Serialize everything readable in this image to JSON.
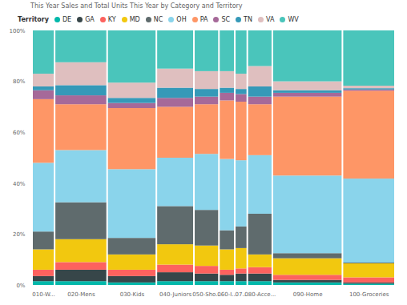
{
  "chart_data": {
    "type": "marimekko",
    "title": "This Year Sales and Total Units This Year by Category and Territory",
    "legend_title": "Territory",
    "legend": "top-left",
    "stacked": true,
    "grid": false,
    "categories": [
      "010-W...",
      "020-Mens",
      "030-Kids",
      "040-Juniors",
      "050-Sho...",
      "060-I...",
      "07...",
      "080-Acce...",
      "090-Home",
      "100-Groceries"
    ],
    "widths": [
      27,
      63,
      59,
      45,
      30,
      19,
      15,
      30,
      84,
      63
    ],
    "ylim": [
      0,
      100
    ],
    "yticks": [
      {
        "value": 0,
        "label": "0%"
      },
      {
        "value": 20,
        "label": "20%"
      },
      {
        "value": 40,
        "label": "40%"
      },
      {
        "value": 60,
        "label": "60%"
      },
      {
        "value": 80,
        "label": "80%"
      },
      {
        "value": 100,
        "label": "100%"
      }
    ],
    "series": [
      {
        "name": "DE",
        "color": "#01B8AA",
        "values": [
          1.5,
          1.5,
          1,
          1.5,
          1.5,
          1.5,
          1.5,
          1.5,
          1,
          0.5
        ]
      },
      {
        "name": "GA",
        "color": "#374649",
        "values": [
          2,
          4.5,
          2.5,
          3.5,
          3,
          2.5,
          3,
          3,
          1,
          0.5
        ]
      },
      {
        "name": "KY",
        "color": "#FD625E",
        "values": [
          2.5,
          3,
          2.5,
          3,
          3,
          2,
          2,
          2.5,
          2,
          2
        ]
      },
      {
        "name": "MD",
        "color": "#F2C80F",
        "values": [
          8,
          9,
          6,
          8,
          8,
          8,
          8,
          5,
          6.5,
          5.5
        ]
      },
      {
        "name": "NC",
        "color": "#5F6B6D",
        "values": [
          7,
          14.5,
          6.5,
          15,
          14,
          7.5,
          8.5,
          16,
          2,
          0.3
        ]
      },
      {
        "name": "OH",
        "color": "#8AD4EB",
        "values": [
          27,
          20.5,
          27,
          19,
          22,
          28,
          26,
          23,
          30.5,
          33
        ]
      },
      {
        "name": "PA",
        "color": "#FE9666",
        "values": [
          25,
          18,
          24,
          20,
          19.5,
          23,
          23,
          20,
          31,
          34.5
        ]
      },
      {
        "name": "SC",
        "color": "#A66999",
        "values": [
          3.5,
          3.5,
          2,
          3.5,
          3,
          3,
          3,
          3,
          1.5,
          0.5
        ]
      },
      {
        "name": "TN",
        "color": "#3599B8",
        "values": [
          1.5,
          4,
          2,
          4,
          3,
          2,
          2,
          4,
          1,
          0.5
        ]
      },
      {
        "name": "VA",
        "color": "#DFBFBF",
        "values": [
          5,
          9,
          6,
          7.5,
          7,
          6.5,
          6,
          8,
          3.5,
          1
        ]
      },
      {
        "name": "WV",
        "color": "#4AC5BB",
        "values": [
          17,
          12.5,
          20.5,
          15,
          16,
          16,
          17,
          14,
          20,
          21.7
        ]
      }
    ]
  }
}
